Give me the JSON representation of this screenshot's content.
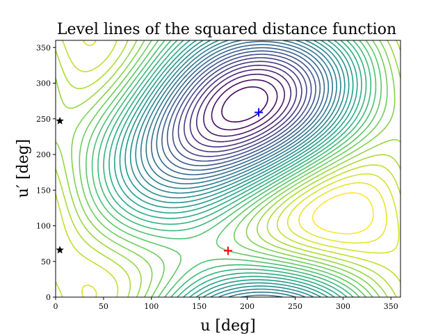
{
  "chart_data": {
    "type": "contour",
    "title": "Level lines of the squared distance function",
    "xlabel": "u [deg]",
    "ylabel": "u′ [deg]",
    "xlim": [
      0,
      360
    ],
    "ylim": [
      0,
      360
    ],
    "x_ticks": [
      0,
      50,
      100,
      150,
      200,
      250,
      300,
      350
    ],
    "y_ticks": [
      0,
      50,
      100,
      150,
      200,
      250,
      300,
      350
    ],
    "colormap": "viridis",
    "grid": false,
    "minima": [
      {
        "x": 180,
        "y": 65,
        "color": "#ff0000",
        "marker": "plus"
      },
      {
        "x": 212,
        "y": 259,
        "color": "#0000ff",
        "marker": "plus"
      }
    ],
    "star_points": [
      {
        "x": 3,
        "y": 247,
        "color": "#000000",
        "marker": "star"
      },
      {
        "x": 3,
        "y": 66,
        "color": "#000000",
        "marker": "star"
      }
    ]
  }
}
